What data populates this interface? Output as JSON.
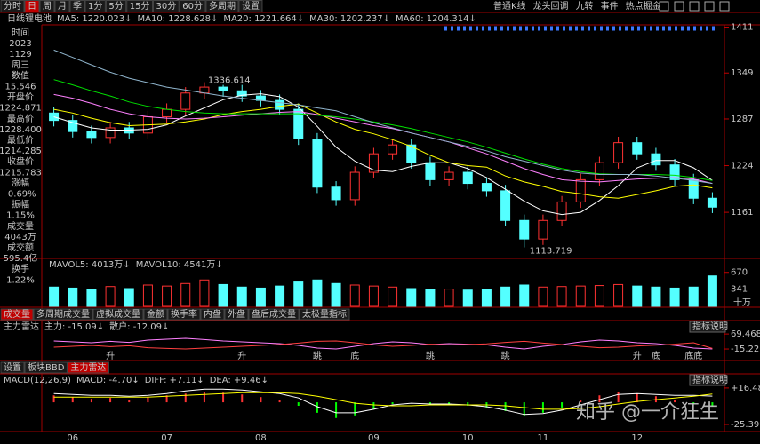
{
  "toolbar": {
    "tabs": [
      "分时",
      "日",
      "周",
      "月",
      "季",
      "1分",
      "5分",
      "15分",
      "30分",
      "60分",
      "多周期",
      "设置"
    ],
    "active_index": 1,
    "right": [
      "普通K线",
      "龙头回调",
      "九转",
      "事件",
      "热点掘金"
    ]
  },
  "info": [
    {
      "text": "时间",
      "color": "#c8c8c8"
    },
    {
      "text": "2023",
      "color": "#c8c8c8"
    },
    {
      "text": "1129",
      "color": "#c8c8c8"
    },
    {
      "text": "周三",
      "color": "#ffffff"
    },
    {
      "text": "数值",
      "color": "#ffffff"
    },
    {
      "text": "15.546",
      "color": "#ff4040"
    },
    {
      "text": "开盘价",
      "color": "#ffffff"
    },
    {
      "text": "1224.871",
      "color": "#ff4040"
    },
    {
      "text": "最高价",
      "color": "#ffffff"
    },
    {
      "text": "1228.400",
      "color": "#ff4040"
    },
    {
      "text": "最低价",
      "color": "#ffffff"
    },
    {
      "text": "1214.285",
      "color": "#40ff40"
    },
    {
      "text": "收盘价",
      "color": "#ffffff"
    },
    {
      "text": "1215.783",
      "color": "#40ff40"
    },
    {
      "text": "涨幅",
      "color": "#ffffff"
    },
    {
      "text": "-0.69%",
      "color": "#40ff40"
    },
    {
      "text": "振幅",
      "color": "#ffffff"
    },
    {
      "text": "1.15%",
      "color": "#c8c8c8"
    },
    {
      "text": "成交量",
      "color": "#ffffff"
    },
    {
      "text": "4043万",
      "color": "#c8c8c8"
    },
    {
      "text": "成交额",
      "color": "#ffffff"
    },
    {
      "text": "595.4亿",
      "color": "#40d0ff"
    },
    {
      "text": "换手",
      "color": "#ffffff"
    },
    {
      "text": "1.22%",
      "color": "#c8c8c8"
    }
  ],
  "volume_tabs": {
    "items": [
      "成交量",
      "多周期成交量",
      "虚拟成交量",
      "金额",
      "换手率",
      "内盘",
      "外盘",
      "盘后成交量",
      "太极量指标"
    ],
    "active_index": 0
  },
  "indicator_tabs": {
    "items": [
      "设置",
      "板块BBD",
      "主力雷达"
    ],
    "active_index": 2
  },
  "watermark": "知乎 @一介狂生",
  "chart_data": [
    {
      "type": "candlestick",
      "period": "日线",
      "name": "锂电池",
      "categories": [
        null,
        "06",
        null,
        null,
        null,
        null,
        "07",
        null,
        null,
        null,
        null,
        "08",
        null,
        null,
        null,
        null,
        null,
        "09",
        null,
        null,
        null,
        null,
        "10",
        null,
        null,
        null,
        "11",
        null,
        null,
        null,
        null,
        "12",
        null,
        null,
        null,
        null
      ],
      "open": [
        1295,
        1285,
        1270,
        1262,
        1275,
        1268,
        1290,
        1300,
        1322,
        1330,
        1325,
        1318,
        1312,
        1300,
        1260,
        1195,
        1178,
        1215,
        1240,
        1252,
        1228,
        1205,
        1215,
        1200,
        1190,
        1150,
        1125,
        1150,
        1175,
        1205,
        1228,
        1255,
        1240,
        1225,
        1205,
        1180
      ],
      "high": [
        1303,
        1293,
        1278,
        1283,
        1283,
        1298,
        1308,
        1330,
        1336.614,
        1333,
        1333,
        1326,
        1320,
        1308,
        1268,
        1203,
        1223,
        1248,
        1260,
        1260,
        1236,
        1223,
        1223,
        1208,
        1198,
        1158,
        1158,
        1183,
        1213,
        1236,
        1263,
        1263,
        1248,
        1233,
        1213,
        1188
      ],
      "low": [
        1277,
        1262,
        1254,
        1254,
        1260,
        1260,
        1282,
        1292,
        1314,
        1317,
        1310,
        1304,
        1292,
        1252,
        1187,
        1170,
        1170,
        1207,
        1232,
        1220,
        1197,
        1197,
        1192,
        1182,
        1142,
        1113.719,
        1117,
        1142,
        1167,
        1197,
        1220,
        1232,
        1217,
        1197,
        1172,
        1160
      ],
      "close": [
        1285,
        1270,
        1262,
        1275,
        1268,
        1290,
        1300,
        1322,
        1330,
        1325,
        1318,
        1312,
        1300,
        1260,
        1195,
        1178,
        1215,
        1240,
        1252,
        1228,
        1205,
        1215,
        1200,
        1190,
        1150,
        1125,
        1150,
        1175,
        1205,
        1228,
        1255,
        1240,
        1225,
        1205,
        1180,
        1168
      ],
      "up_color": "#ff3232",
      "down_color": "#54ffff",
      "series": [
        {
          "name": "MA5: 1220.023↓",
          "color": "#ffffff",
          "values": [
            1290,
            1282,
            1275,
            1272,
            1272,
            1273,
            1279,
            1291,
            1302,
            1313,
            1319,
            1321,
            1317,
            1303,
            1277,
            1249,
            1230,
            1218,
            1216,
            1223,
            1228,
            1228,
            1220,
            1208,
            1192,
            1176,
            1163,
            1158,
            1161,
            1177,
            1197,
            1221,
            1231,
            1231,
            1221,
            1204
          ]
        },
        {
          "name": "MA10: 1228.628↓",
          "color": "#ffff00",
          "values": [
            1300,
            1295,
            1288,
            1282,
            1278,
            1279,
            1280,
            1283,
            1287,
            1293,
            1297,
            1300,
            1304,
            1307,
            1295,
            1283,
            1273,
            1267,
            1259,
            1250,
            1238,
            1228,
            1224,
            1222,
            1210,
            1202,
            1196,
            1189,
            1186,
            1182,
            1180,
            1185,
            1190,
            1196,
            1198,
            1194
          ]
        },
        {
          "name": "MA20: 1221.664↓",
          "color": "#ff80ff",
          "values": [
            1320,
            1315,
            1308,
            1300,
            1294,
            1290,
            1288,
            1287,
            1288,
            1290,
            1292,
            1294,
            1296,
            1297,
            1293,
            1288,
            1283,
            1278,
            1274,
            1268,
            1262,
            1256,
            1248,
            1240,
            1230,
            1220,
            1212,
            1205,
            1203,
            1202,
            1204,
            1206,
            1207,
            1208,
            1206,
            1200
          ]
        },
        {
          "name": "MA30: 1202.237↓",
          "color": "#00e000",
          "values": [
            1340,
            1333,
            1325,
            1318,
            1310,
            1304,
            1300,
            1297,
            1295,
            1294,
            1294,
            1294,
            1294,
            1294,
            1292,
            1290,
            1287,
            1283,
            1279,
            1274,
            1268,
            1262,
            1256,
            1249,
            1241,
            1233,
            1226,
            1220,
            1216,
            1213,
            1212,
            1212,
            1212,
            1211,
            1208,
            1204
          ]
        },
        {
          "name": "MA60: 1204.314↓",
          "color": "#8fb4cc",
          "values": [
            1380,
            1370,
            1360,
            1350,
            1342,
            1336,
            1330,
            1326,
            1322,
            1318,
            1315,
            1312,
            1309,
            1306,
            1302,
            1298,
            1290,
            1282,
            1275,
            1268,
            1262,
            1256,
            1250,
            1244,
            1236,
            1230,
            1224,
            1218,
            1214,
            1212,
            1212,
            1212,
            1210,
            1207,
            1204,
            1200
          ]
        }
      ],
      "ylim": [
        1100,
        1414
      ],
      "yticks": [
        1161,
        1224,
        1287,
        1349,
        1411
      ]
    },
    {
      "type": "volume",
      "legend": [
        {
          "name": "MAVOL5: 4013万↓",
          "color": "#ffffff"
        },
        {
          "name": "MAVOL10: 4541万↓",
          "color": "#ffff00"
        }
      ],
      "values": [
        380,
        360,
        340,
        390,
        350,
        420,
        400,
        450,
        520,
        430,
        380,
        360,
        400,
        480,
        520,
        450,
        420,
        400,
        380,
        350,
        330,
        340,
        320,
        330,
        380,
        420,
        380,
        390,
        400,
        410,
        430,
        400,
        380,
        360,
        380,
        600
      ],
      "unit": "十万",
      "ylim": [
        0,
        700
      ],
      "yticks": [
        341,
        670
      ]
    },
    {
      "type": "line",
      "title": "主力雷达",
      "button": "指标说明",
      "series": [
        {
          "name": "主力: -15.09↓",
          "color": "#ff80ff",
          "values": [
            30,
            25,
            20,
            28,
            22,
            35,
            40,
            45,
            38,
            30,
            25,
            20,
            15,
            5,
            -10,
            -15,
            0,
            15,
            25,
            20,
            10,
            15,
            12,
            8,
            -5,
            -15,
            0,
            10,
            25,
            35,
            30,
            20,
            15,
            5,
            -10,
            -15.09
          ]
        },
        {
          "name": "散户: -12.09↓",
          "color": "#ff4040",
          "values": [
            -5,
            0,
            5,
            -2,
            3,
            -8,
            -12,
            -15,
            -10,
            -5,
            0,
            5,
            10,
            18,
            28,
            30,
            20,
            8,
            0,
            5,
            12,
            8,
            10,
            14,
            22,
            28,
            18,
            10,
            0,
            -8,
            -5,
            2,
            6,
            12,
            20,
            -12.09
          ]
        }
      ],
      "signals": [
        null,
        null,
        null,
        "升",
        null,
        null,
        null,
        null,
        null,
        null,
        "升",
        null,
        null,
        null,
        "跳",
        null,
        "底",
        null,
        null,
        null,
        "跳",
        null,
        null,
        null,
        "跳",
        null,
        null,
        null,
        null,
        null,
        null,
        "升",
        "底",
        null,
        "底底",
        null
      ],
      "signal_color": "#ff5060",
      "ylim": [
        -75,
        100
      ],
      "yticks": [
        -15.226,
        69.468
      ]
    },
    {
      "type": "macd",
      "title": "MACD(12,26,9)",
      "button": "指标说明",
      "histogram": {
        "name": "MACD: -4.70↓",
        "up_color": "#ff3232",
        "down_color": "#00ff00",
        "values": [
          8,
          6,
          4,
          5,
          3,
          6,
          8,
          10,
          12,
          11,
          9,
          6,
          3,
          -4,
          -12,
          -18,
          -15,
          -8,
          -2,
          0,
          -3,
          -2,
          -4,
          -6,
          -10,
          -15,
          -12,
          -6,
          2,
          8,
          12,
          10,
          7,
          3,
          -2,
          -4.7
        ]
      },
      "series": [
        {
          "name": "DIFF: +7.11↓",
          "color": "#ffffff",
          "values": [
            10,
            9,
            8,
            8,
            7,
            8,
            10,
            13,
            15,
            15,
            14,
            12,
            10,
            5,
            -5,
            -12,
            -12,
            -8,
            -3,
            -1,
            -2,
            -2,
            -3,
            -5,
            -9,
            -14,
            -13,
            -9,
            -3,
            3,
            9,
            10,
            9,
            8,
            8,
            7.11
          ]
        },
        {
          "name": "DEA: +9.46↓",
          "color": "#ffff00",
          "values": [
            6,
            6,
            6,
            6,
            6,
            6,
            7,
            8,
            9,
            10,
            11,
            11,
            11,
            10,
            7,
            3,
            -1,
            -3,
            -4,
            -4,
            -3,
            -3,
            -3,
            -3,
            -4,
            -6,
            -8,
            -8,
            -7,
            -5,
            -2,
            1,
            3,
            5,
            7,
            9.46
          ]
        }
      ],
      "ylim": [
        -32.5,
        23.5
      ],
      "yticks": [
        {
          "value": 16.48,
          "label": "+16.48"
        },
        -25.39
      ]
    }
  ]
}
